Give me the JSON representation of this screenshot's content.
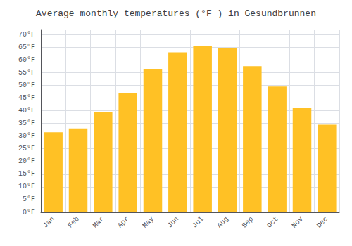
{
  "chart_data": {
    "type": "bar",
    "title": "Average monthly temperatures (°F ) in Gesundbrunnen",
    "categories": [
      "Jan",
      "Feb",
      "Mar",
      "Apr",
      "May",
      "Jun",
      "Jul",
      "Aug",
      "Sep",
      "Oct",
      "Nov",
      "Dec"
    ],
    "values": [
      31.5,
      33.0,
      39.5,
      47.0,
      56.5,
      63.0,
      65.5,
      64.5,
      57.5,
      49.5,
      41.0,
      34.5
    ],
    "color": "#FFC125",
    "ylim": [
      0,
      72
    ],
    "yticks": [
      {
        "value": 0,
        "label": "0°F"
      },
      {
        "value": 5,
        "label": "5°F"
      },
      {
        "value": 10,
        "label": "10°F"
      },
      {
        "value": 15,
        "label": "15°F"
      },
      {
        "value": 20,
        "label": "20°F"
      },
      {
        "value": 25,
        "label": "25°F"
      },
      {
        "value": 30,
        "label": "30°F"
      },
      {
        "value": 35,
        "label": "35°F"
      },
      {
        "value": 40,
        "label": "40°F"
      },
      {
        "value": 45,
        "label": "45°F"
      },
      {
        "value": 50,
        "label": "50°F"
      },
      {
        "value": 55,
        "label": "55°F"
      },
      {
        "value": 60,
        "label": "60°F"
      },
      {
        "value": 65,
        "label": "65°F"
      },
      {
        "value": 70,
        "label": "70°F"
      }
    ],
    "grid": true
  }
}
